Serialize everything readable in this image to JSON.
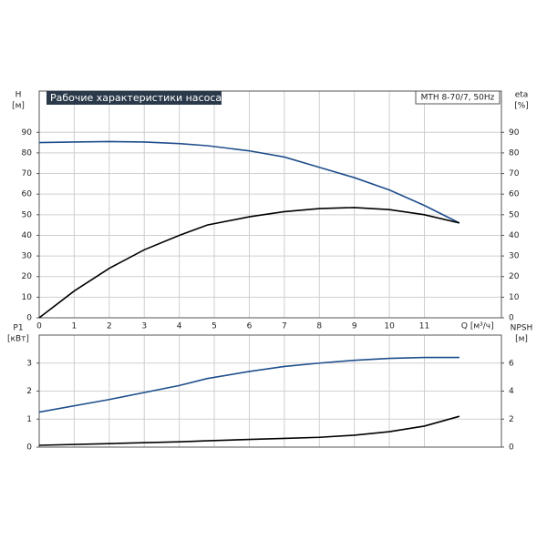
{
  "chart_data": [
    {
      "type": "line",
      "title": "Рабочие характеристики насоса",
      "subtitle": "MTH 8-70/7, 50Hz",
      "y_label": "H",
      "y_unit": "[м]",
      "y2_label": "eta",
      "y2_unit": "[%]",
      "x_label": "Q [м³/ч]",
      "x": [
        0,
        1,
        2,
        3,
        4,
        4.8,
        6,
        7,
        8,
        9,
        10,
        11,
        12
      ],
      "series": [
        {
          "name": "H",
          "color": "#1f4e8c",
          "values": [
            85,
            85.3,
            85.5,
            85.3,
            84.5,
            83.5,
            81,
            78,
            73,
            68,
            62,
            54.5,
            46
          ]
        },
        {
          "name": "eta",
          "color": "#000000",
          "axis": "y2",
          "values": [
            0,
            13,
            24,
            33,
            40,
            45,
            49,
            51.5,
            53,
            53.5,
            52.5,
            50,
            46
          ]
        }
      ],
      "xlim": [
        0,
        13.2
      ],
      "xticks": [
        0,
        1,
        2,
        3,
        4,
        5,
        6,
        7,
        8,
        9,
        10,
        11
      ],
      "ylim": [
        0,
        110
      ],
      "yticks": [
        0,
        10,
        20,
        30,
        40,
        50,
        60,
        70,
        80,
        90
      ],
      "y2lim": [
        0,
        110
      ],
      "y2ticks": [
        0,
        10,
        20,
        30,
        40,
        50,
        60,
        70,
        80,
        90
      ],
      "grid": true
    },
    {
      "type": "line",
      "y_label": "P1",
      "y_unit": "[кВт]",
      "y2_label": "NPSH",
      "y2_unit": "[м]",
      "x": [
        0,
        2,
        4,
        4.8,
        6,
        7,
        8,
        9,
        10,
        11,
        12
      ],
      "series": [
        {
          "name": "P1",
          "color": "#1f4e8c",
          "values": [
            1.25,
            1.7,
            2.2,
            2.45,
            2.7,
            2.88,
            3.0,
            3.1,
            3.17,
            3.2,
            3.2
          ]
        },
        {
          "name": "NPSH",
          "color": "#000000",
          "axis": "y2",
          "values": [
            0.13,
            0.25,
            0.38,
            0.45,
            0.55,
            0.62,
            0.7,
            0.85,
            1.1,
            1.5,
            2.2
          ]
        }
      ],
      "xlim": [
        0,
        13.2
      ],
      "ylim": [
        0,
        4
      ],
      "yticks": [
        0,
        1,
        2,
        3
      ],
      "y2lim": [
        0,
        8
      ],
      "y2ticks": [
        0,
        2,
        4,
        6
      ],
      "grid": true
    }
  ]
}
